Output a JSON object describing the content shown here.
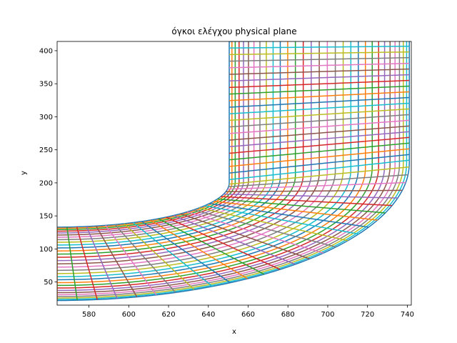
{
  "chart_data": {
    "type": "line",
    "title": "όγκοι ελέγχου physical plane",
    "xlabel": "x",
    "ylabel": "y",
    "xlim": [
      564,
      742
    ],
    "ylim": [
      15,
      414
    ],
    "xticks": [
      580,
      600,
      620,
      640,
      660,
      680,
      700,
      720,
      740
    ],
    "yticks": [
      50,
      100,
      150,
      200,
      250,
      300,
      350,
      400
    ],
    "grid": false,
    "legend": "none",
    "mesh": {
      "description_of_geometry": "curvilinear channel bend: lower-left horizontal leg turning into vertical upper leg",
      "inner_wall": {
        "corner_x": 650.5,
        "corner_y": 135,
        "radius": 0.0
      },
      "outer_wall": {
        "corner_x": 741.0,
        "corner_y": 25,
        "bend_start_y": 230
      },
      "inlet_x": 564,
      "outlet_y": 414,
      "streamwise_lines": 30,
      "crosswise_lines": 50
    },
    "colors": [
      "#1f77b4",
      "#ff7f0e",
      "#2ca02c",
      "#d62728",
      "#9467bd",
      "#8c564b",
      "#e377c2",
      "#7f7f7f",
      "#bcbd22",
      "#17becf"
    ]
  }
}
